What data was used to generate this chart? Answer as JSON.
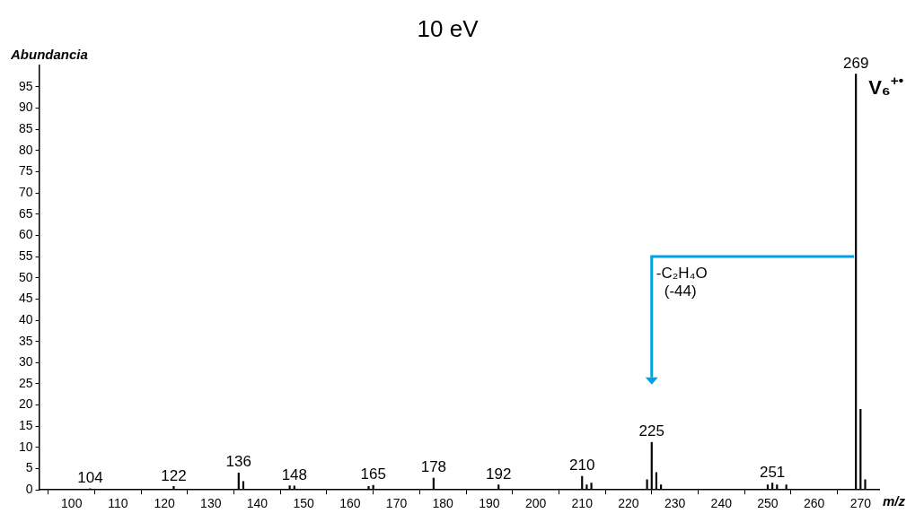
{
  "chart_data": {
    "type": "bar",
    "title": "10 eV",
    "xlabel": "m/z",
    "ylabel": "Abundancia",
    "x": [
      104,
      122,
      136,
      137,
      147,
      148,
      164,
      165,
      178,
      192,
      210,
      211,
      212,
      224,
      225,
      226,
      227,
      250,
      251,
      252,
      254,
      269,
      270,
      271
    ],
    "values": [
      0.3,
      0.8,
      4,
      2,
      1,
      0.9,
      0.8,
      1.1,
      2.8,
      1.2,
      3.2,
      1.2,
      1.6,
      2.4,
      11.2,
      4.1,
      1.2,
      1.2,
      1.6,
      1.2,
      1.2,
      98,
      19,
      2.4
    ],
    "color": "#000000",
    "xlim": [
      93,
      274
    ],
    "xticks": [
      100,
      110,
      120,
      130,
      140,
      150,
      160,
      170,
      180,
      190,
      200,
      210,
      220,
      230,
      240,
      250,
      260,
      270
    ],
    "ylim": [
      0,
      100
    ],
    "yticks": [
      0,
      5,
      10,
      15,
      20,
      25,
      30,
      35,
      40,
      45,
      50,
      55,
      60,
      65,
      70,
      75,
      80,
      85,
      90,
      95
    ],
    "annotations": [
      "-C₂H₄O",
      "(-44)",
      "V₆$^{+•}$",
      {
        "text": "104",
        "x": 104,
        "y": 0.3
      },
      {
        "text": "122",
        "x": 122,
        "y": 0.8
      },
      {
        "text": "136",
        "x": 136,
        "y": 4
      },
      {
        "text": "148",
        "x": 148,
        "y": 0.9
      },
      {
        "text": "165",
        "x": 165,
        "y": 1.1
      },
      {
        "text": "178",
        "x": 178,
        "y": 2.8
      },
      {
        "text": "192",
        "x": 192,
        "y": 1.2
      },
      {
        "text": "210",
        "x": 210,
        "y": 3.2
      },
      {
        "text": "225",
        "x": 225,
        "y": 11.2
      },
      {
        "text": "251",
        "x": 251,
        "y": 1.6
      },
      {
        "text": "269",
        "x": 269,
        "y": 98
      }
    ],
    "grid": false,
    "legend": false
  }
}
